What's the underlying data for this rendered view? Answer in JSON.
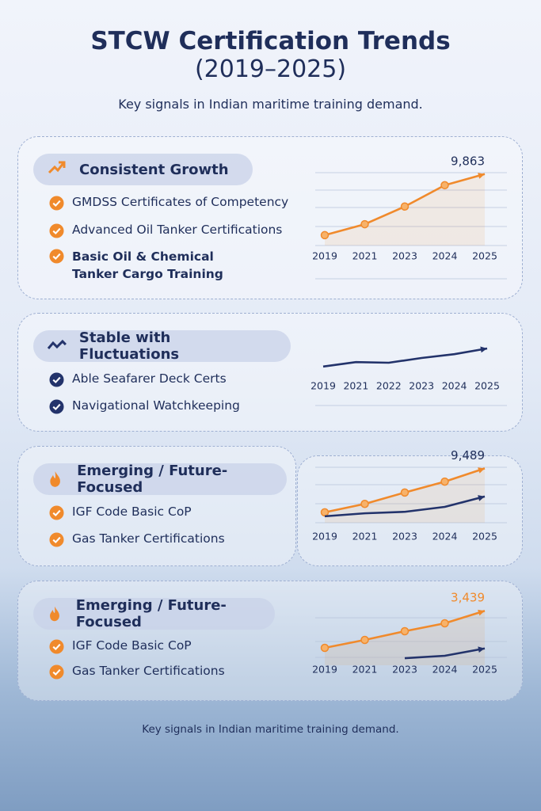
{
  "header": {
    "title": "STCW Certification Trends",
    "years": "(2019–2025)",
    "tagline": "Key signals in Indian maritime training demand."
  },
  "cards": [
    {
      "heading": "Consistent Growth",
      "icon_color": "#f08a2c",
      "items": [
        "GMDSS Certificates of Competency",
        "Advanced Oil Tanker Certifications",
        "Basic Oil & Chemical Tanker Cargo Training"
      ],
      "chart_data": {
        "type": "line",
        "categories": [
          "2019",
          "2021",
          "2023",
          "2024",
          "2025"
        ],
        "ylim": [
          4000,
          10500
        ],
        "series": [
          {
            "color": "#f08a2c",
            "markers": true,
            "values": [
              4850,
              5750,
              7200,
              8950,
              9863
            ],
            "value_labels": [
              null,
              null,
              null,
              null,
              "9,863"
            ]
          }
        ]
      }
    },
    {
      "heading": "Stable with Fluctuations",
      "icon_color": "#23336b",
      "items": [
        "Able Seafarer Deck Certs",
        "Navigational Watchkeeping"
      ],
      "chart_data": {
        "type": "line",
        "categories": [
          "2019",
          "2021",
          "2022",
          "2023",
          "2024",
          "2025"
        ],
        "ylim": [
          0,
          100
        ],
        "series": [
          {
            "color": "#23336b",
            "markers": false,
            "values": [
              18,
              32,
              30,
              45,
              57,
              75
            ]
          }
        ]
      }
    },
    {
      "heading": "Emerging / Future-Focused",
      "icon_color": "#f08a2c",
      "items": [
        "IGF Code Basic CoP",
        "Gas Tanker Certifications"
      ],
      "chart_data": {
        "type": "line",
        "categories": [
          "2019",
          "2021",
          "2023",
          "2024",
          "2025"
        ],
        "ylim": [
          4000,
          10000
        ],
        "series": [
          {
            "color": "#f08a2c",
            "markers": true,
            "values": [
              5050,
              5900,
              7050,
              8150,
              9489
            ],
            "value_labels": [
              null,
              null,
              null,
              null,
              "9,489"
            ]
          },
          {
            "color": "#23336b",
            "markers": false,
            "values": [
              4650,
              4950,
              5100,
              5600,
              6650
            ]
          }
        ]
      }
    },
    {
      "heading": "Emerging / Future-Focused",
      "icon_color": "#f08a2c",
      "items": [
        "IGF Code Basic CoP",
        "Gas Tanker Certifications"
      ],
      "chart_data": {
        "type": "line",
        "categories": [
          "2019",
          "2021",
          "2023",
          "2024",
          "2025"
        ],
        "ylim": [
          0,
          4000
        ],
        "y2lim": [
          0,
          2500
        ],
        "series": [
          {
            "color": "#f08a2c",
            "markers": true,
            "values": [
              1100,
              1600,
              2150,
              2650,
              3439
            ],
            "value_labels": [
              null,
              null,
              null,
              null,
              "3,439"
            ]
          },
          {
            "color": "#23336b",
            "markers": false,
            "axis": "y2",
            "values": [
              null,
              null,
              280,
              375,
              665
            ]
          }
        ]
      }
    }
  ],
  "footer": "Key signals in Indian maritime training demand."
}
